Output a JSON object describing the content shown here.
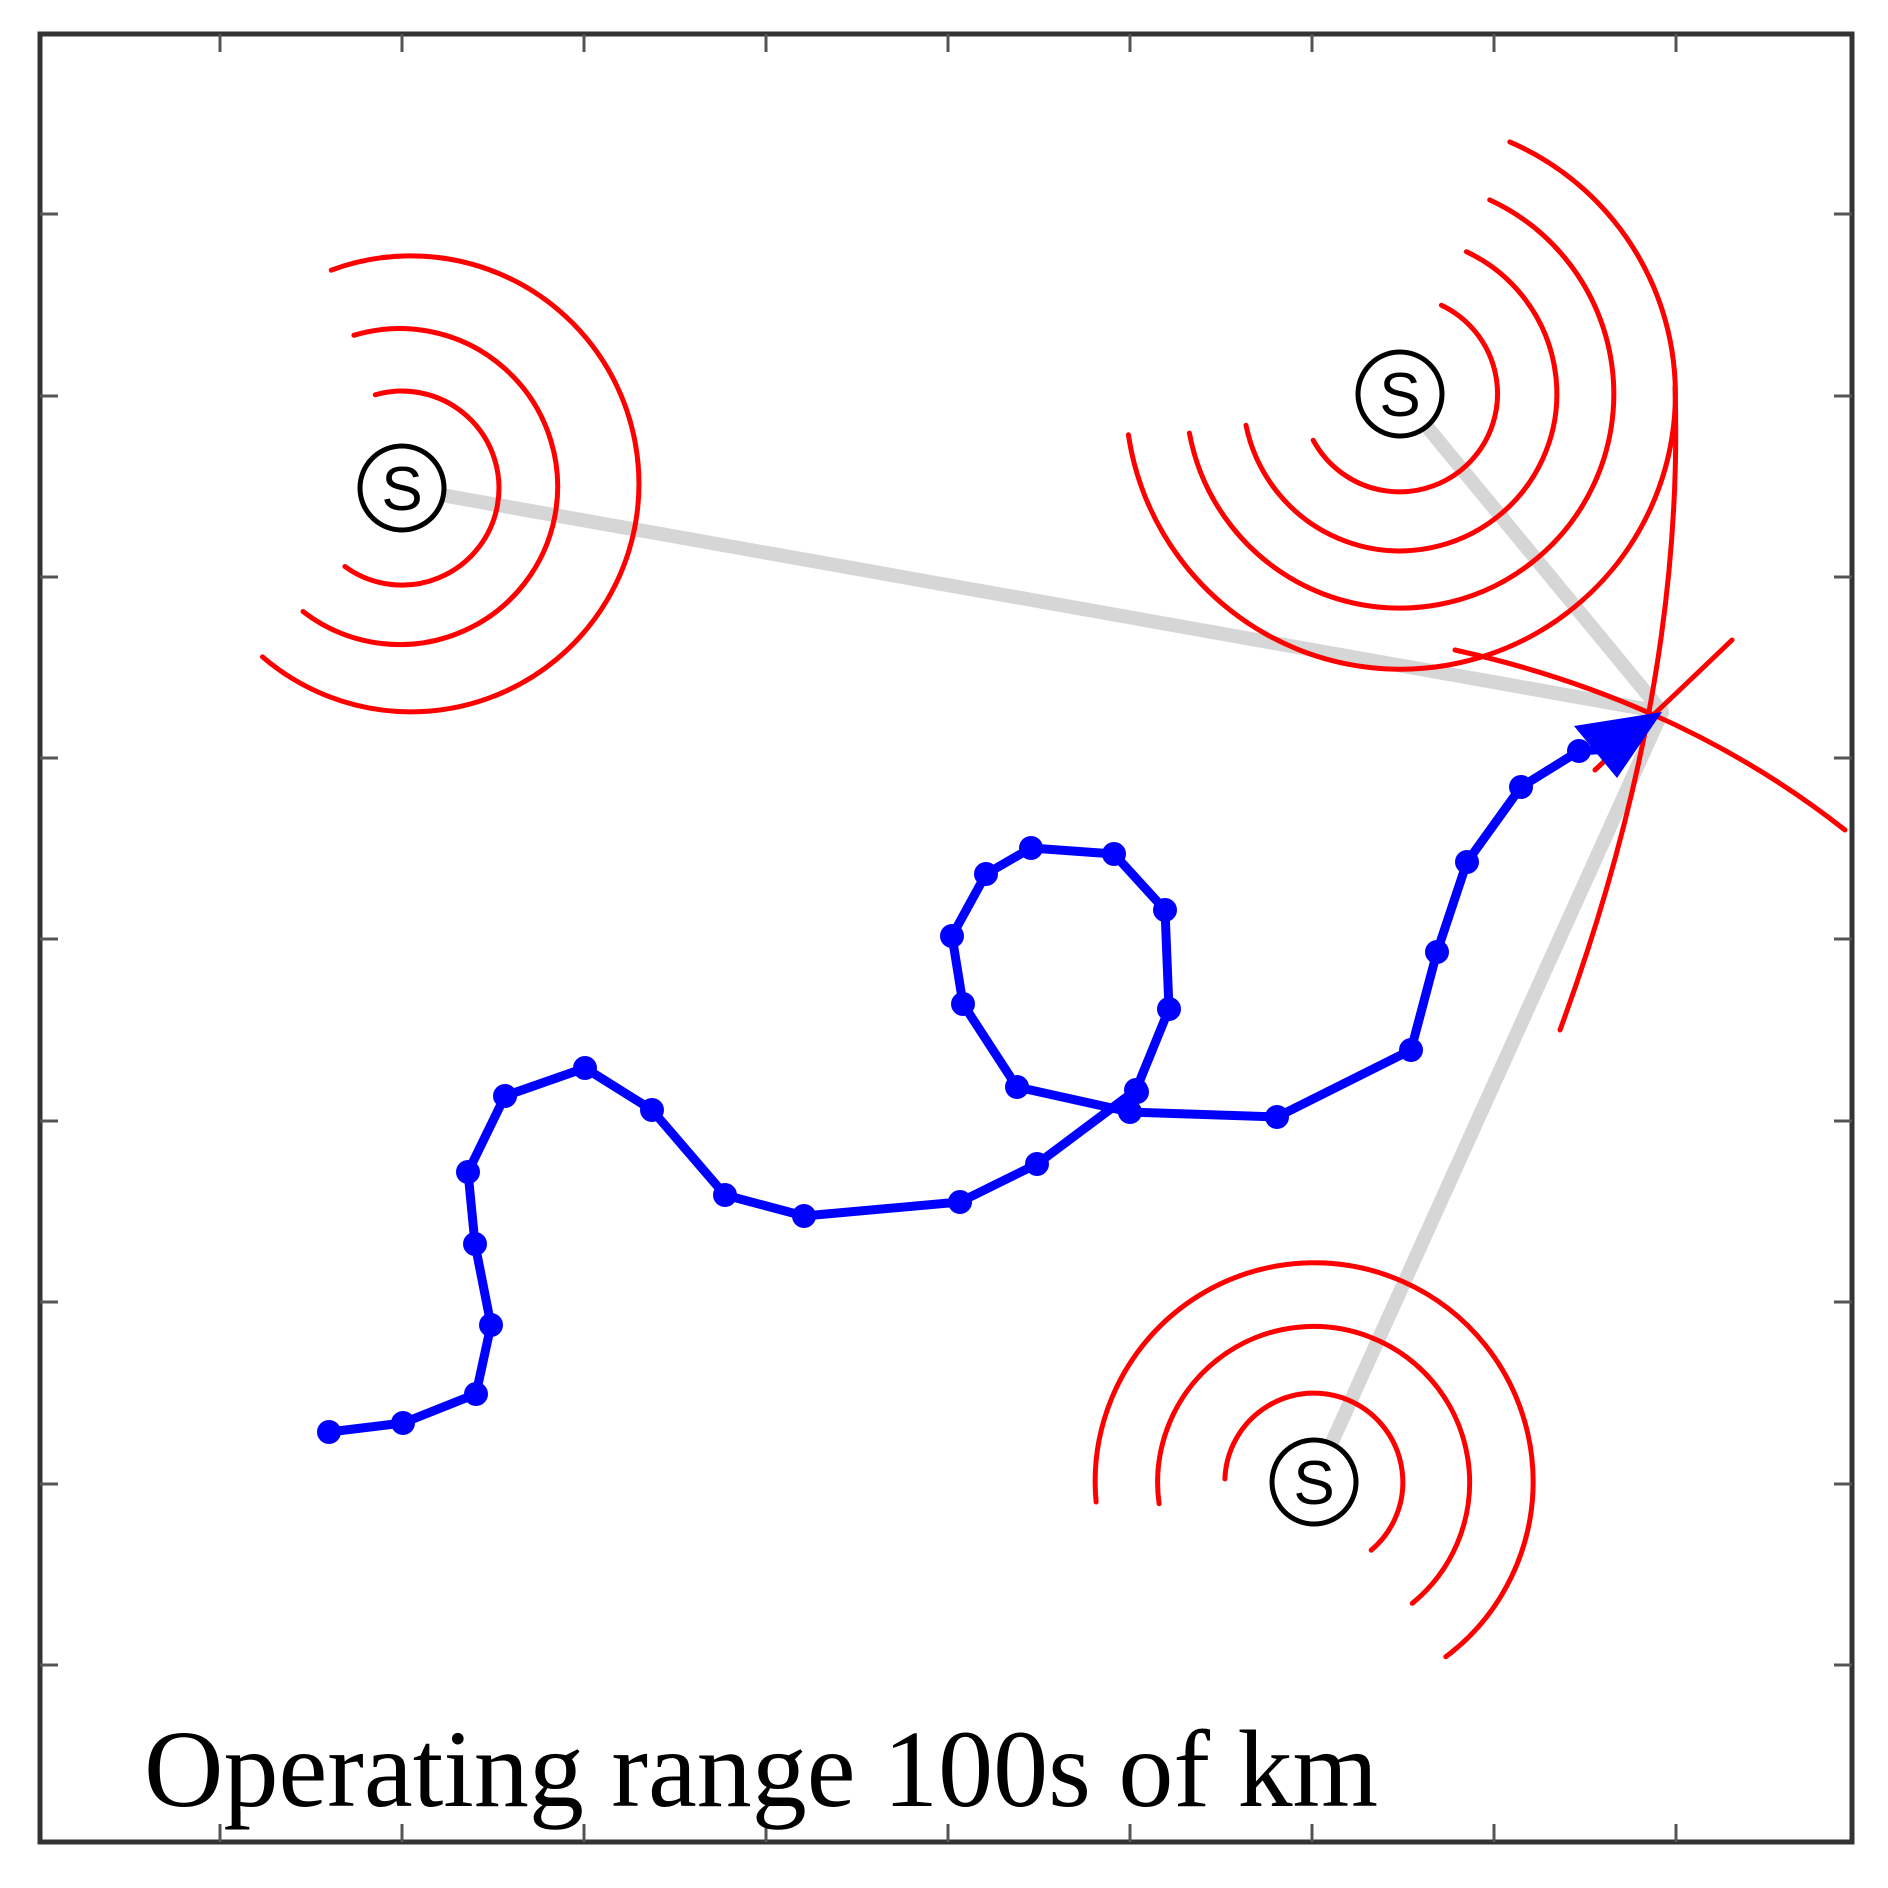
{
  "caption": "Operating range 100s of km",
  "stations": [
    {
      "id": "west",
      "label": "S"
    },
    {
      "id": "northeast",
      "label": "S"
    },
    {
      "id": "southeast",
      "label": "S"
    }
  ],
  "colors": {
    "track": "#0000ff",
    "wavefronts": "#ff0000",
    "ranges": "#d6d6d6",
    "frame": "#333333"
  },
  "icons": {
    "station": "circled-s-icon",
    "track_head": "arrowhead-icon"
  }
}
